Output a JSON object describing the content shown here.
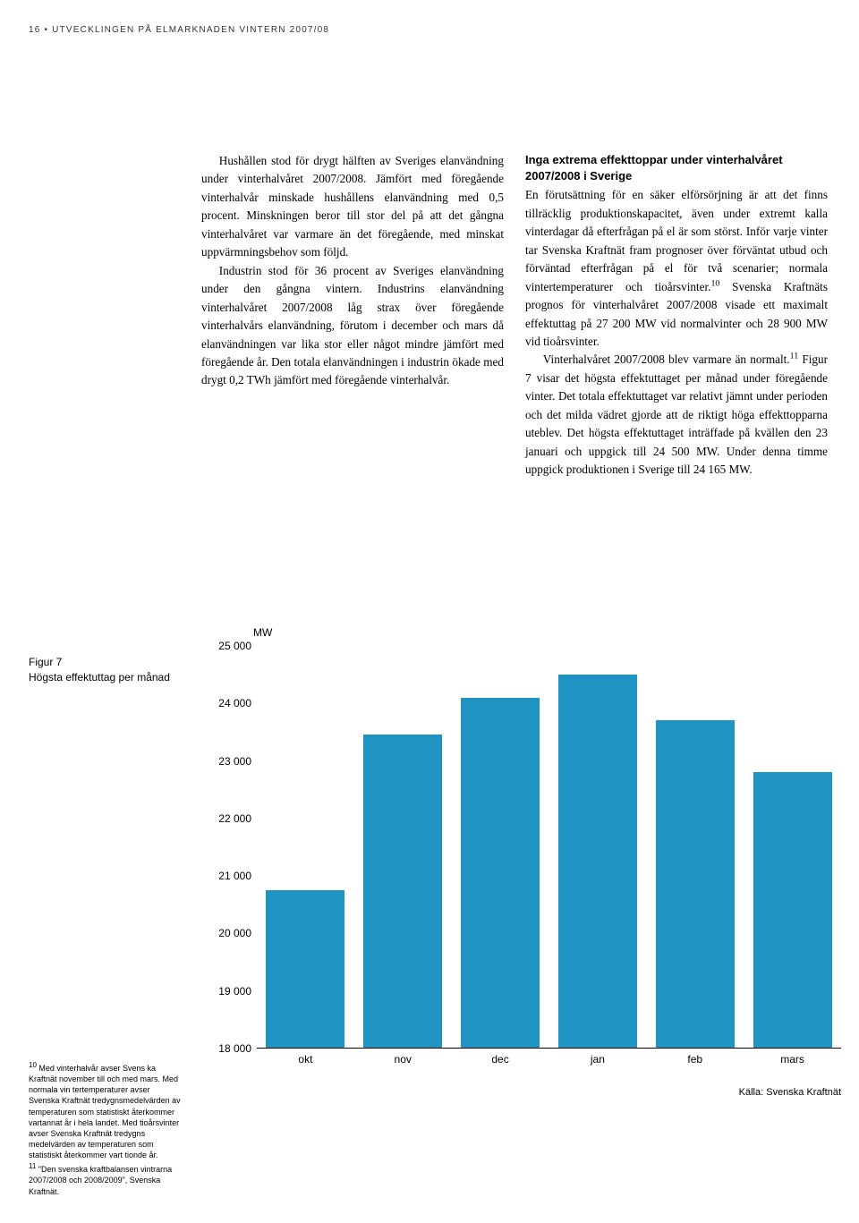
{
  "header": "16 • UTVECKLINGEN PÅ ELMARKNADEN VINTERN 2007/08",
  "leftCol": {
    "p1indent": "Hushållen stod för drygt hälften av Sveriges elanvändning under vinterhalvåret 2007/2008. Jämfört med föregående vinterhalvår minskade hushållens elanvändning med 0,5 procent. Minskningen beror till stor del på att det gångna vinterhalvåret var varmare än det föregående, med minskat uppvärmningsbehov som följd.",
    "p2indent": "Industrin stod för 36 procent av Sveriges elanvändning under den gångna vintern. Industrins elanvändning vinterhalvåret 2007/2008 låg strax över föregående vinterhalvårs elanvändning, förutom i december och mars då elanvändningen var lika stor eller något mindre jämfört med föregående år. Den totala elanvändningen i industrin ökade med drygt 0,2 TWh jämfört med föregående vinterhalvår."
  },
  "rightCol": {
    "heading": "Inga extrema effekttoppar under vinterhalvåret 2007/2008 i Sverige",
    "p1": "En förutsättning för en säker elförsörjning är att det finns tillräcklig produktionskapacitet, även under extremt kalla vinterdagar då efterfrågan på el är som störst. Inför varje vinter tar Svenska Kraftnät fram prognoser över förväntat utbud och förväntad efterfrågan på el för två scenarier; normala vintertemperaturer och tioårsvinter.",
    "p1sup": "10",
    "p1b": " Svenska Kraftnäts prognos för vinterhalvåret 2007/2008 visade ett maximalt effektuttag på 27 200 MW vid normalvinter och 28 900 MW vid tioårsvinter.",
    "p2indent_a": "Vinterhalvåret 2007/2008 blev varmare än normalt.",
    "p2sup": "11",
    "p2indent_b": " Figur 7 visar det högsta effektuttaget per månad under föregående vinter. Det totala effektuttaget var relativt jämnt under perioden och det milda vädret gjorde att de riktigt höga effekttopparna uteblev. Det högsta effektuttaget inträffade på kvällen den 23 januari och uppgick till 24 500 MW. Under denna timme uppgick produktionen i Sverige till 24 165 MW."
  },
  "figureLabel": {
    "title": "Figur 7",
    "sub": "Högsta effektuttag per månad"
  },
  "chart": {
    "type": "bar",
    "y_unit": "MW",
    "ylim": [
      18000,
      25000
    ],
    "yticks": [
      18000,
      19000,
      20000,
      21000,
      22000,
      23000,
      24000,
      25000
    ],
    "ytick_labels": [
      "18 000",
      "19 000",
      "20 000",
      "21 000",
      "22 000",
      "23 000",
      "24 000",
      "25 000"
    ],
    "categories": [
      "okt",
      "nov",
      "dec",
      "jan",
      "feb",
      "mars"
    ],
    "values": [
      20750,
      23450,
      24100,
      24500,
      23700,
      22800
    ],
    "bar_color": "#1f94c3",
    "axis_color": "#000000",
    "label_fontsize": 12,
    "source": "Källa: Svenska Kraftnät"
  },
  "footnotes": {
    "fn10_sup": "10",
    "fn10": " Med vinterhalvår avser Svens ka Kraftnät november till och med mars. Med normala vin tertemperaturer avser Svenska Kraftnät tredygnsmedelvärden av temperaturen som statistiskt återkommer vartannat år i hela landet. Med tioårsvinter avser Svenska Kraftnät tredygns medelvärden av temperaturen som statistiskt återkommer vart tionde år.",
    "fn11_sup": "11",
    "fn11": " \"Den svenska kraftbalansen vintrarna 2007/2008 och 2008/2009\", Svenska Kraftnät."
  }
}
